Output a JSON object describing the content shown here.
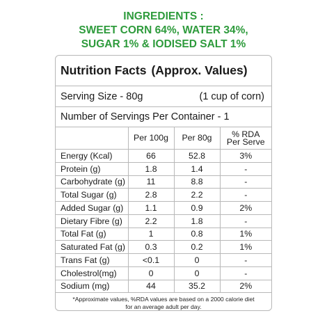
{
  "ingredients": {
    "line1": "INGREDIENTS :",
    "line2": "SWEET CORN 64%, WATER 34%,",
    "line3": "SUGAR 1% & IODISED SALT 1%"
  },
  "panel": {
    "title": "Nutrition Facts",
    "title_note": "(Approx. Values)",
    "serving_size": "Serving Size - 80g",
    "serving_note": "(1 cup of corn)",
    "servings_per_container": "Number of Servings Per Container - 1"
  },
  "table": {
    "headers": {
      "nutrient": "",
      "per_100g": "Per 100g",
      "per_80g": "Per 80g",
      "rda_line1": "% RDA",
      "rda_line2": "Per Serve"
    },
    "rows": [
      {
        "nutrient": "Energy (Kcal)",
        "per_100g": "66",
        "per_80g": "52.8",
        "rda": "3%"
      },
      {
        "nutrient": "Protein (g)",
        "per_100g": "1.8",
        "per_80g": "1.4",
        "rda": "-"
      },
      {
        "nutrient": "Carbohydrate (g)",
        "per_100g": "11",
        "per_80g": "8.8",
        "rda": "-"
      },
      {
        "nutrient": "Total Sugar (g)",
        "per_100g": "2.8",
        "per_80g": "2.2",
        "rda": "-"
      },
      {
        "nutrient": "Added Sugar (g)",
        "per_100g": "1.1",
        "per_80g": "0.9",
        "rda": "2%"
      },
      {
        "nutrient": "Dietary Fibre (g)",
        "per_100g": "2.2",
        "per_80g": "1.8",
        "rda": "-"
      },
      {
        "nutrient": "Total Fat (g)",
        "per_100g": "1",
        "per_80g": "0.8",
        "rda": "1%"
      },
      {
        "nutrient": "Saturated Fat (g)",
        "per_100g": "0.3",
        "per_80g": "0.2",
        "rda": "1%"
      },
      {
        "nutrient": "Trans Fat (g)",
        "per_100g": "<0.1",
        "per_80g": "0",
        "rda": "-"
      },
      {
        "nutrient": "Cholestrol(mg)",
        "per_100g": "0",
        "per_80g": "0",
        "rda": "-"
      },
      {
        "nutrient": "Sodium (mg)",
        "per_100g": "44",
        "per_80g": "35.2",
        "rda": "2%"
      }
    ]
  },
  "footnote": {
    "line1": "*Approximate values, %RDA values are based on a 2000 calorie diet",
    "line2": "for an average adult per day."
  },
  "colors": {
    "ingredients_green": "#2e9b3c",
    "border_gray": "#b8b8b8"
  }
}
